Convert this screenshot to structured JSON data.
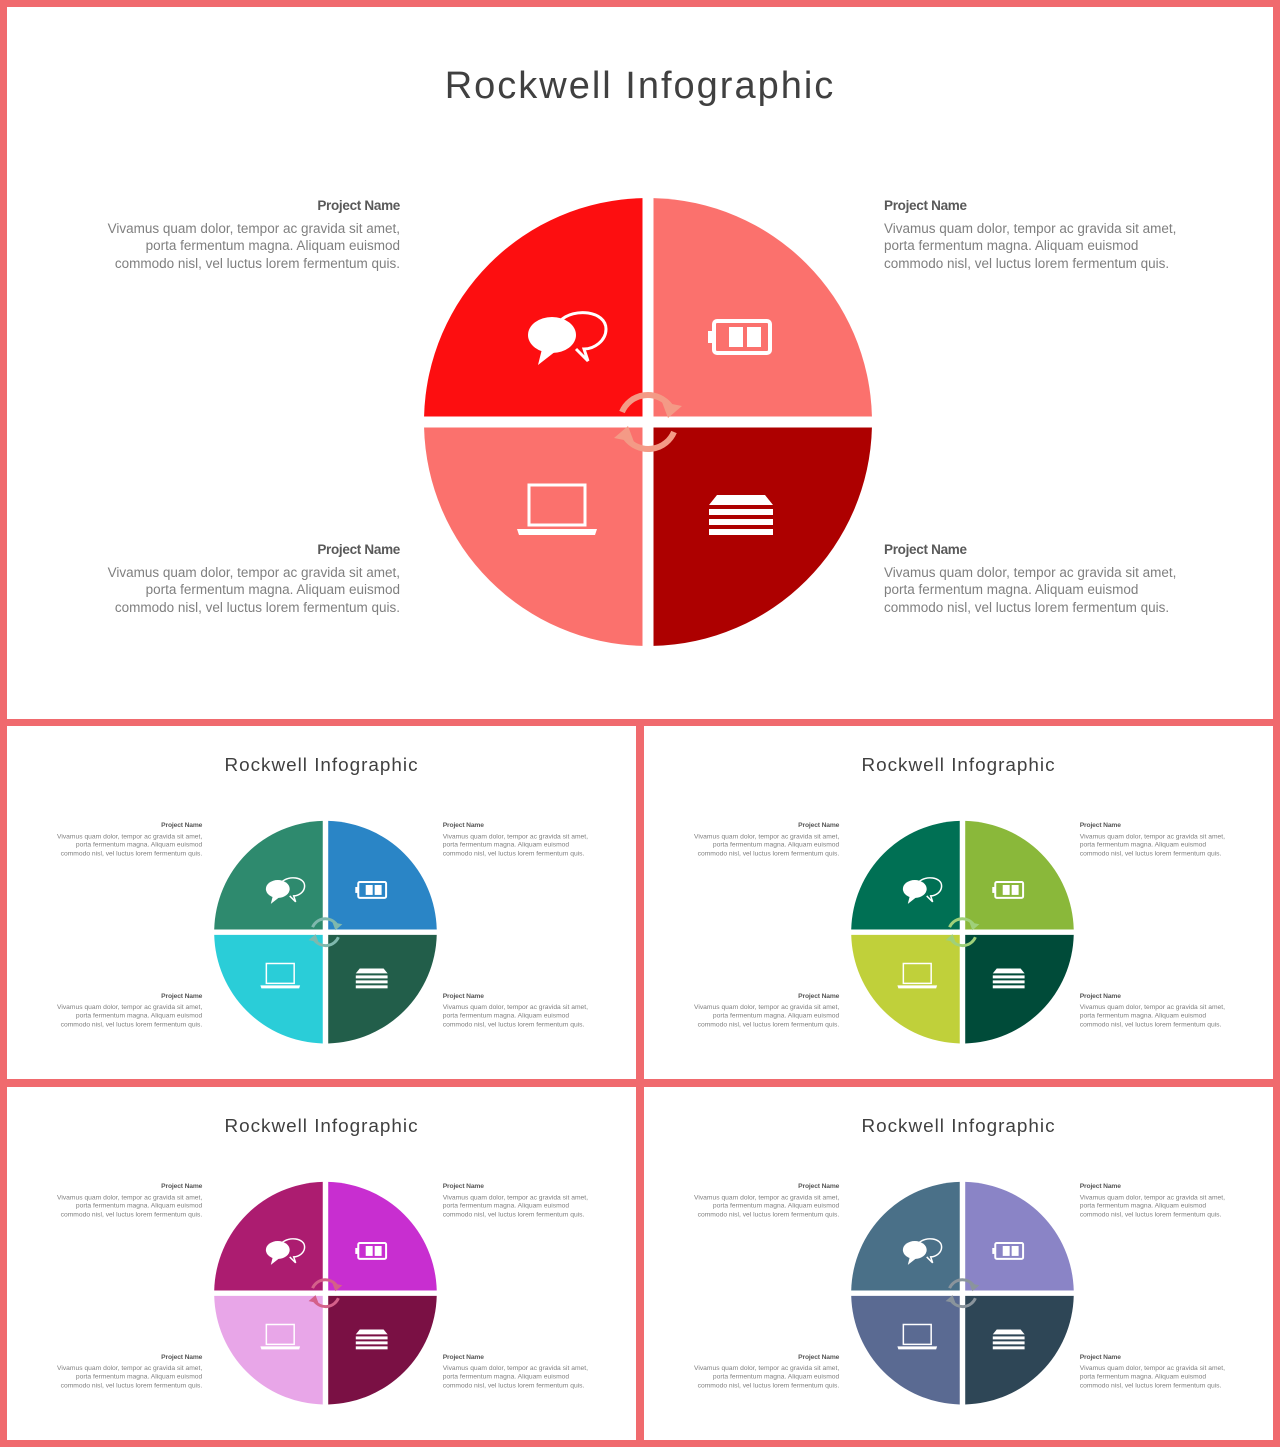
{
  "slides": [
    {
      "title": "Rockwell Infographic",
      "colors": {
        "top_left": "#fd0e10",
        "top_right": "#fb716d",
        "bottom_left": "#fb716d",
        "bottom_right": "#ad0000",
        "arrows": "#f49a86"
      },
      "items": [
        {
          "name": "Project Name",
          "text": "Vivamus quam dolor, tempor ac gravida sit amet, porta fermentum magna. Aliquam euismod commodo nisl, vel luctus lorem fermentum quis.",
          "icon": "chat-bubbles-icon"
        },
        {
          "name": "Project Name",
          "text": "Vivamus quam dolor, tempor ac gravida sit amet, porta fermentum magna. Aliquam euismod commodo nisl, vel luctus lorem fermentum quis.",
          "icon": "battery-icon"
        },
        {
          "name": "Project Name",
          "text": "Vivamus quam dolor, tempor ac gravida sit amet, porta fermentum magna. Aliquam euismod commodo nisl, vel luctus lorem fermentum quis.",
          "icon": "laptop-icon"
        },
        {
          "name": "Project Name",
          "text": "Vivamus quam dolor, tempor ac gravida sit amet, porta fermentum magna. Aliquam euismod commodo nisl, vel luctus lorem fermentum quis.",
          "icon": "layers-icon"
        }
      ]
    },
    {
      "title": "Rockwell Infographic",
      "colors": {
        "top_left": "#2e8a6e",
        "top_right": "#2a85c6",
        "bottom_left": "#2acdd8",
        "bottom_right": "#225e4a",
        "arrows": "#7fb8ad"
      },
      "items": [
        {
          "name": "Project Name",
          "text": "Vivamus quam dolor, tempor ac gravida sit amet, porta fermentum magna. Aliquam euismod commodo nisl, vel luctus lorem fermentum quis.",
          "icon": "chat-bubbles-icon"
        },
        {
          "name": "Project Name",
          "text": "Vivamus quam dolor, tempor ac gravida sit amet, porta fermentum magna. Aliquam euismod commodo nisl, vel luctus lorem fermentum quis.",
          "icon": "battery-icon"
        },
        {
          "name": "Project Name",
          "text": "Vivamus quam dolor, tempor ac gravida sit amet, porta fermentum magna. Aliquam euismod commodo nisl, vel luctus lorem fermentum quis.",
          "icon": "laptop-icon"
        },
        {
          "name": "Project Name",
          "text": "Vivamus quam dolor, tempor ac gravida sit amet, porta fermentum magna. Aliquam euismod commodo nisl, vel luctus lorem fermentum quis.",
          "icon": "layers-icon"
        }
      ]
    },
    {
      "title": "Rockwell Infographic",
      "colors": {
        "top_left": "#007054",
        "top_right": "#8ab83a",
        "bottom_left": "#c0d03a",
        "bottom_right": "#004b39",
        "arrows": "#9fd07a"
      },
      "items": [
        {
          "name": "Project Name",
          "text": "Vivamus quam dolor, tempor ac gravida sit amet, porta fermentum magna. Aliquam euismod commodo nisl, vel luctus lorem fermentum quis.",
          "icon": "chat-bubbles-icon"
        },
        {
          "name": "Project Name",
          "text": "Vivamus quam dolor, tempor ac gravida sit amet, porta fermentum magna. Aliquam euismod commodo nisl, vel luctus lorem fermentum quis.",
          "icon": "battery-icon"
        },
        {
          "name": "Project Name",
          "text": "Vivamus quam dolor, tempor ac gravida sit amet, porta fermentum magna. Aliquam euismod commodo nisl, vel luctus lorem fermentum quis.",
          "icon": "laptop-icon"
        },
        {
          "name": "Project Name",
          "text": "Vivamus quam dolor, tempor ac gravida sit amet, porta fermentum magna. Aliquam euismod commodo nisl, vel luctus lorem fermentum quis.",
          "icon": "layers-icon"
        }
      ]
    },
    {
      "title": "Rockwell Infographic",
      "colors": {
        "top_left": "#ac1c70",
        "top_right": "#c82ed0",
        "bottom_left": "#e8a6e8",
        "bottom_right": "#7a1044",
        "arrows": "#d4608a"
      },
      "items": [
        {
          "name": "Project Name",
          "text": "Vivamus quam dolor, tempor ac gravida sit amet, porta fermentum magna. Aliquam euismod commodo nisl, vel luctus lorem fermentum quis.",
          "icon": "chat-bubbles-icon"
        },
        {
          "name": "Project Name",
          "text": "Vivamus quam dolor, tempor ac gravida sit amet, porta fermentum magna. Aliquam euismod commodo nisl, vel luctus lorem fermentum quis.",
          "icon": "battery-icon"
        },
        {
          "name": "Project Name",
          "text": "Vivamus quam dolor, tempor ac gravida sit amet, porta fermentum magna. Aliquam euismod commodo nisl, vel luctus lorem fermentum quis.",
          "icon": "laptop-icon"
        },
        {
          "name": "Project Name",
          "text": "Vivamus quam dolor, tempor ac gravida sit amet, porta fermentum magna. Aliquam euismod commodo nisl, vel luctus lorem fermentum quis.",
          "icon": "layers-icon"
        }
      ]
    },
    {
      "title": "Rockwell Infographic",
      "colors": {
        "top_left": "#4a7088",
        "top_right": "#8a84c6",
        "bottom_left": "#5a6a92",
        "bottom_right": "#2e4656",
        "arrows": "#8a949c"
      },
      "items": [
        {
          "name": "Project Name",
          "text": "Vivamus quam dolor, tempor ac gravida sit amet, porta fermentum magna. Aliquam euismod commodo nisl, vel luctus lorem fermentum quis.",
          "icon": "chat-bubbles-icon"
        },
        {
          "name": "Project Name",
          "text": "Vivamus quam dolor, tempor ac gravida sit amet, porta fermentum magna. Aliquam euismod commodo nisl, vel luctus lorem fermentum quis.",
          "icon": "battery-icon"
        },
        {
          "name": "Project Name",
          "text": "Vivamus quam dolor, tempor ac gravida sit amet, porta fermentum magna. Aliquam euismod commodo nisl, vel luctus lorem fermentum quis.",
          "icon": "laptop-icon"
        },
        {
          "name": "Project Name",
          "text": "Vivamus quam dolor, tempor ac gravida sit amet, porta fermentum magna. Aliquam euismod commodo nisl, vel luctus lorem fermentum quis.",
          "icon": "layers-icon"
        }
      ]
    }
  ]
}
